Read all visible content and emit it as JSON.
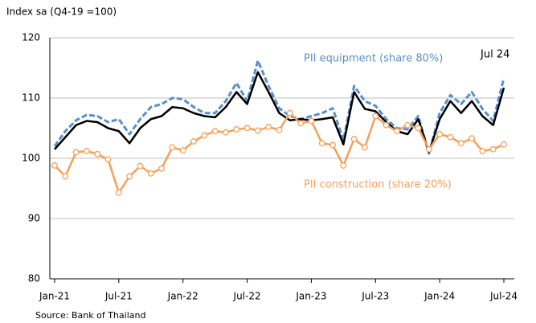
{
  "chart_data": {
    "type": "line",
    "title": "Index sa (Q4-19 =100)",
    "source": "Source: Bank of Thailand",
    "categories": [
      "Jan-21",
      null,
      null,
      null,
      null,
      null,
      "Jul-21",
      null,
      null,
      null,
      null,
      null,
      "Jan-22",
      null,
      null,
      null,
      null,
      null,
      "Jul-22",
      null,
      null,
      null,
      null,
      null,
      "Jan-23",
      null,
      null,
      null,
      null,
      null,
      "Jul-23",
      null,
      null,
      null,
      null,
      null,
      "Jan-24",
      null,
      null,
      null,
      null,
      null,
      "Jul-24"
    ],
    "series": [
      {
        "name": "PII equipment (share 80%)",
        "color": "#5b8fc9",
        "dashed": true,
        "values": [
          102,
          104.5,
          106.3,
          107.2,
          107,
          106,
          106.5,
          104,
          106.5,
          108.5,
          109,
          110,
          109.8,
          108.5,
          107.5,
          107.5,
          109.5,
          112.5,
          109.5,
          116.2,
          112,
          108.3,
          107,
          106.5,
          107,
          107.5,
          108.3,
          103,
          112,
          109.5,
          108.7,
          106.5,
          105,
          104.8,
          107,
          100.8,
          107.5,
          110.5,
          109,
          111,
          108.2,
          106.2,
          113.3
        ]
      },
      {
        "color": "#000000",
        "values": [
          101.5,
          103.5,
          105.5,
          106.2,
          106,
          105,
          104.5,
          102.5,
          105,
          106.5,
          107,
          108.5,
          108.3,
          107.5,
          107,
          106.8,
          108.5,
          111,
          109,
          114.3,
          111,
          107.5,
          106.3,
          106.5,
          106.3,
          106.5,
          106.8,
          102.3,
          111,
          108.2,
          107.8,
          106,
          104.5,
          104,
          106.5,
          101,
          106.5,
          109.5,
          107.5,
          109.5,
          107,
          105.5,
          111.7
        ]
      },
      {
        "name": "PII construction (share 20%)",
        "color": "#f5a05a",
        "markers": true,
        "values": [
          98.8,
          97,
          101,
          101.2,
          100.7,
          99.8,
          94.3,
          97,
          98.7,
          97.5,
          98.3,
          101.8,
          101.3,
          102.8,
          103.8,
          104.5,
          104.3,
          104.8,
          105,
          104.6,
          105.2,
          104.7,
          107.5,
          105.8,
          106.2,
          102.5,
          102.2,
          98.8,
          103.2,
          101.8,
          107,
          105.5,
          104.5,
          105.5,
          105,
          101.5,
          104,
          103.5,
          102.5,
          103.3,
          101.2,
          101.5,
          102.3
        ]
      }
    ],
    "annotations": [
      {
        "text": "PII equipment (share 80%)",
        "series": 0
      },
      {
        "text": "PII construction (share 20%)",
        "series": 2
      },
      {
        "text": "Jul 24",
        "series": 1
      }
    ],
    "ylim": [
      80,
      120
    ],
    "yticks": [
      80,
      90,
      100,
      110,
      120
    ],
    "grid": true
  }
}
